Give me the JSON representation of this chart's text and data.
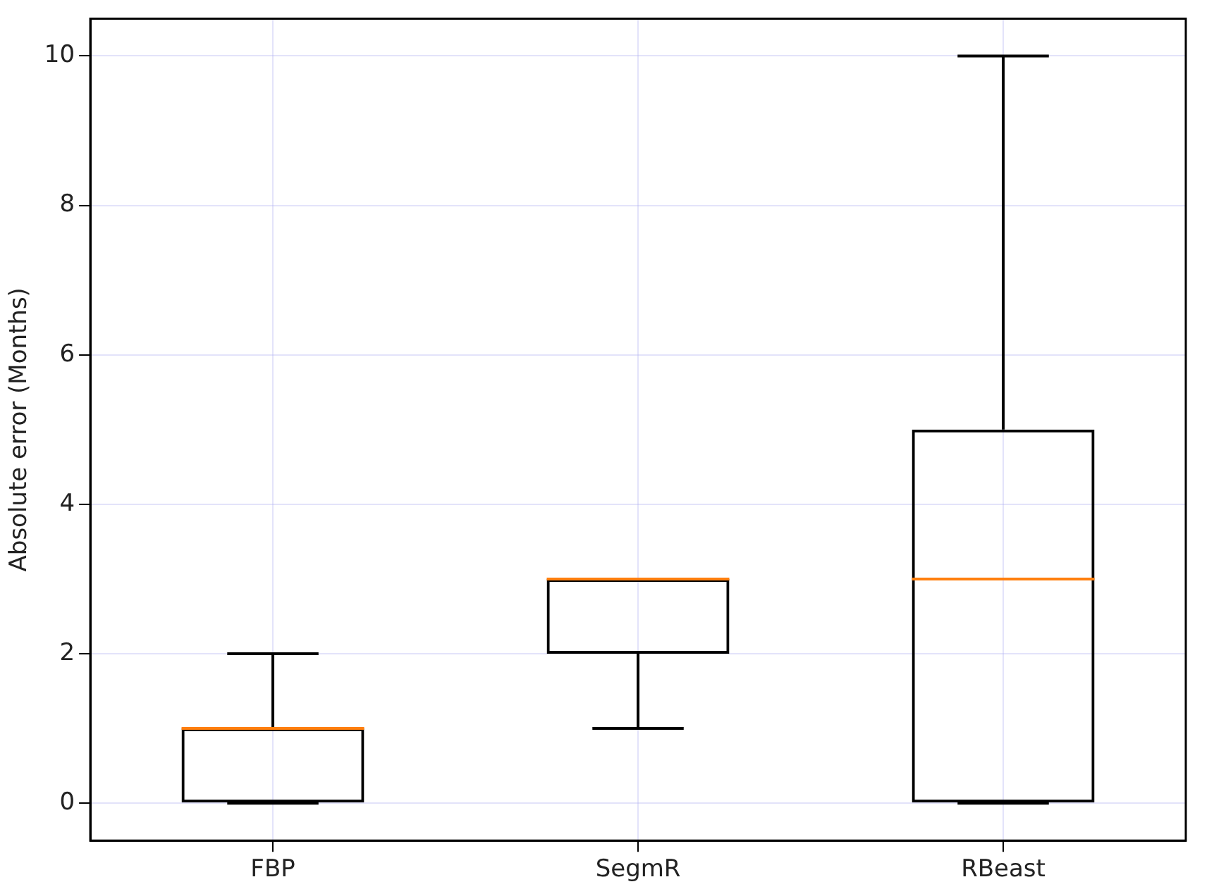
{
  "chart_data": {
    "type": "box",
    "ylabel": "Absolute error (Months)",
    "categories": [
      "FBP",
      "SegmR",
      "RBeast"
    ],
    "boxes": [
      {
        "low": 0,
        "q1": 0,
        "median": 1,
        "q3": 1,
        "high": 2
      },
      {
        "low": 1,
        "q1": 2,
        "median": 3,
        "q3": 3,
        "high": 3
      },
      {
        "low": 0,
        "q1": 0,
        "median": 3,
        "q3": 5,
        "high": 10
      }
    ],
    "ylim": [
      -0.5,
      10.5
    ],
    "yticks": [
      0,
      2,
      4,
      6,
      8,
      10
    ],
    "grid": true
  }
}
